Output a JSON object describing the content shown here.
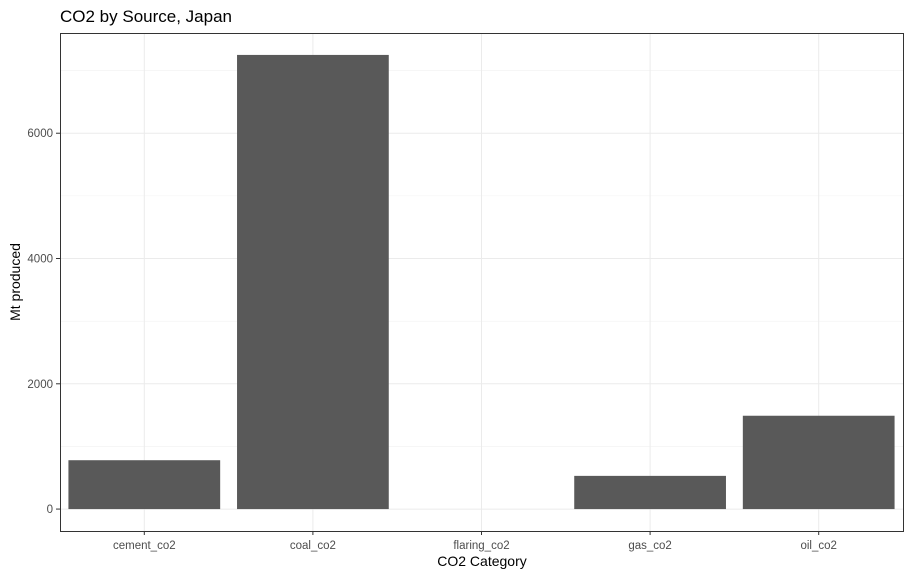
{
  "chart_data": {
    "type": "bar",
    "title": "CO2 by Source, Japan",
    "xlabel": "CO2 Category",
    "ylabel": "Mt produced",
    "categories": [
      "cement_co2",
      "coal_co2",
      "flaring_co2",
      "gas_co2",
      "oil_co2"
    ],
    "values": [
      780,
      7250,
      0,
      530,
      1490
    ],
    "ylim": [
      -350,
      7600
    ],
    "yticks": [
      0,
      2000,
      4000,
      6000
    ],
    "ytick_labels": [
      "0",
      "2000",
      "4000",
      "6000"
    ],
    "grid": true,
    "bar_color": "#595959",
    "legend": "none"
  }
}
